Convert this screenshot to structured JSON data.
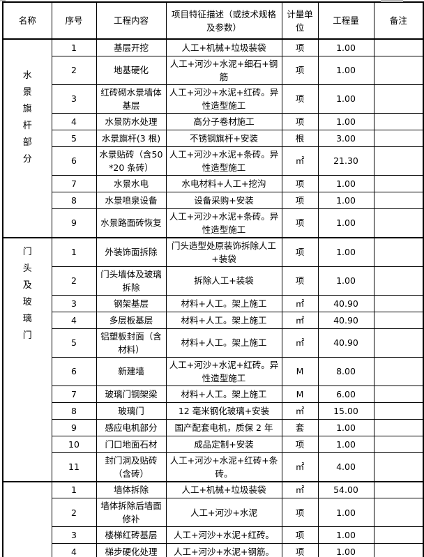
{
  "header": {
    "columns": [
      "名称",
      "序号",
      "工程内容",
      "项目特征描述（或技术规格及参数）",
      "计量单位",
      "工程量",
      "备注"
    ]
  },
  "sections": [
    {
      "name": "水景旗杆部分",
      "rows": [
        {
          "no": "1",
          "content": "基层开挖",
          "desc": "人工+机械+垃圾装袋",
          "unit": "项",
          "qty": "1.00"
        },
        {
          "no": "2",
          "content": "地基硬化",
          "desc": "人工+河沙+水泥+细石+钢筋",
          "unit": "项",
          "qty": "1.00"
        },
        {
          "no": "3",
          "content": "红砖砌水景墙体基层",
          "desc": "人工+河沙+水泥+红砖。异性造型施工",
          "unit": "项",
          "qty": "1.00"
        },
        {
          "no": "4",
          "content": "水景防水处理",
          "desc": "高分子卷材施工",
          "unit": "项",
          "qty": "1.00"
        },
        {
          "no": "5",
          "content": "水景旗杆(3 根)",
          "desc": "不锈钢旗杆+安装",
          "unit": "根",
          "qty": "3.00"
        },
        {
          "no": "6",
          "content": "水景贴砖（含50*20 条砖）",
          "desc": "人工+河沙+水泥+条砖。异性造型施工",
          "unit": "㎡",
          "qty": "21.30"
        },
        {
          "no": "7",
          "content": "水景水电",
          "desc": "水电材料+人工+挖沟",
          "unit": "项",
          "qty": "1.00"
        },
        {
          "no": "8",
          "content": "水景喷泉设备",
          "desc": "设备采购+安装",
          "unit": "项",
          "qty": "1.00"
        },
        {
          "no": "9",
          "content": "水景路面砖恢复",
          "desc": "人工+河沙+水泥+条砖。异性造型施工",
          "unit": "项",
          "qty": "1.00"
        }
      ]
    },
    {
      "name": "门头及玻璃门",
      "rows": [
        {
          "no": "1",
          "content": "外装饰面拆除",
          "desc": "门头造型处原装饰拆除人工+装袋",
          "unit": "项",
          "qty": "1.00"
        },
        {
          "no": "2",
          "content": "门头墙体及玻璃拆除",
          "desc": "拆除人工+装袋",
          "unit": "项",
          "qty": "1.00"
        },
        {
          "no": "3",
          "content": "钢架基层",
          "desc": "材料+人工。架上施工",
          "unit": "㎡",
          "qty": "40.90"
        },
        {
          "no": "4",
          "content": "多层板基层",
          "desc": "材料+人工。架上施工",
          "unit": "㎡",
          "qty": "40.90"
        },
        {
          "no": "5",
          "content": "铝塑板封面（含材料）",
          "desc": "材料+人工。架上施工",
          "unit": "㎡",
          "qty": "40.90"
        },
        {
          "no": "6",
          "content": "新建墙",
          "desc": "人工+河沙+水泥+红砖。异性造型施工",
          "unit": "M",
          "qty": "8.00"
        },
        {
          "no": "7",
          "content": "玻璃门钢架梁",
          "desc": "材料+人工。架上施工",
          "unit": "M",
          "qty": "6.00"
        },
        {
          "no": "8",
          "content": "玻璃门",
          "desc": "12 毫米钢化玻璃+安装",
          "unit": "㎡",
          "qty": "15.00"
        },
        {
          "no": "9",
          "content": "感应电机部分",
          "desc": "国产配套电机，质保 2 年",
          "unit": "套",
          "qty": "1.00"
        },
        {
          "no": "10",
          "content": "门口地面石材",
          "desc": "成品定制+安装",
          "unit": "项",
          "qty": "1.00"
        },
        {
          "no": "11",
          "content": "封门洞及贴砖（含砖）",
          "desc": "人工+河沙+水泥+红砖+条砖。",
          "unit": "㎡",
          "qty": "4.00"
        }
      ]
    },
    {
      "name": "",
      "rows": [
        {
          "no": "1",
          "content": "墙体拆除",
          "desc": "人工+机械+垃圾装袋",
          "unit": "㎡",
          "qty": "54.00"
        },
        {
          "no": "2",
          "content": "墙体拆除后墙面修补",
          "desc": "人工+河沙+水泥",
          "unit": "项",
          "qty": "1.00"
        },
        {
          "no": "3",
          "content": "楼梯红砖基层",
          "desc": "人工+河沙+水泥+红砖。",
          "unit": "项",
          "qty": "1.00"
        },
        {
          "no": "4",
          "content": "梯步硬化处理",
          "desc": "人工+河沙+水泥+钢筋。",
          "unit": "项",
          "qty": "1.00"
        }
      ]
    }
  ]
}
